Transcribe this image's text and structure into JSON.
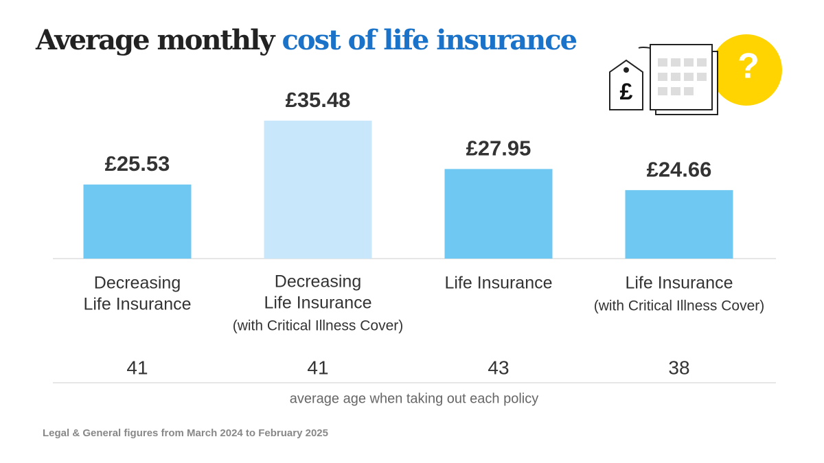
{
  "chart_data": {
    "type": "bar",
    "title": [
      "Average monthly",
      "cost of life insurance"
    ],
    "categories": [
      [
        "Decreasing",
        "Life Insurance"
      ],
      [
        "Decreasing",
        "Life Insurance"
      ],
      [
        "Life Insurance"
      ],
      [
        "Life Insurance"
      ]
    ],
    "notes": [
      null,
      "(with Critical Illness Cover)",
      null,
      "(with Critical Illness Cover)"
    ],
    "values": [
      25.53,
      35.48,
      27.95,
      24.66
    ],
    "value_labels": [
      "£25.53",
      "£35.48",
      "£27.95",
      "£24.66"
    ],
    "colors": [
      "#6fc8f2",
      "#c8e7fa",
      "#6fc8f2",
      "#6fc8f2"
    ],
    "ylim": [
      14,
      36
    ],
    "ages": [
      41,
      41,
      43,
      38
    ],
    "age_caption": "average age when taking out each policy",
    "source": "Legal & General figures from March 2024 to February 2025"
  }
}
